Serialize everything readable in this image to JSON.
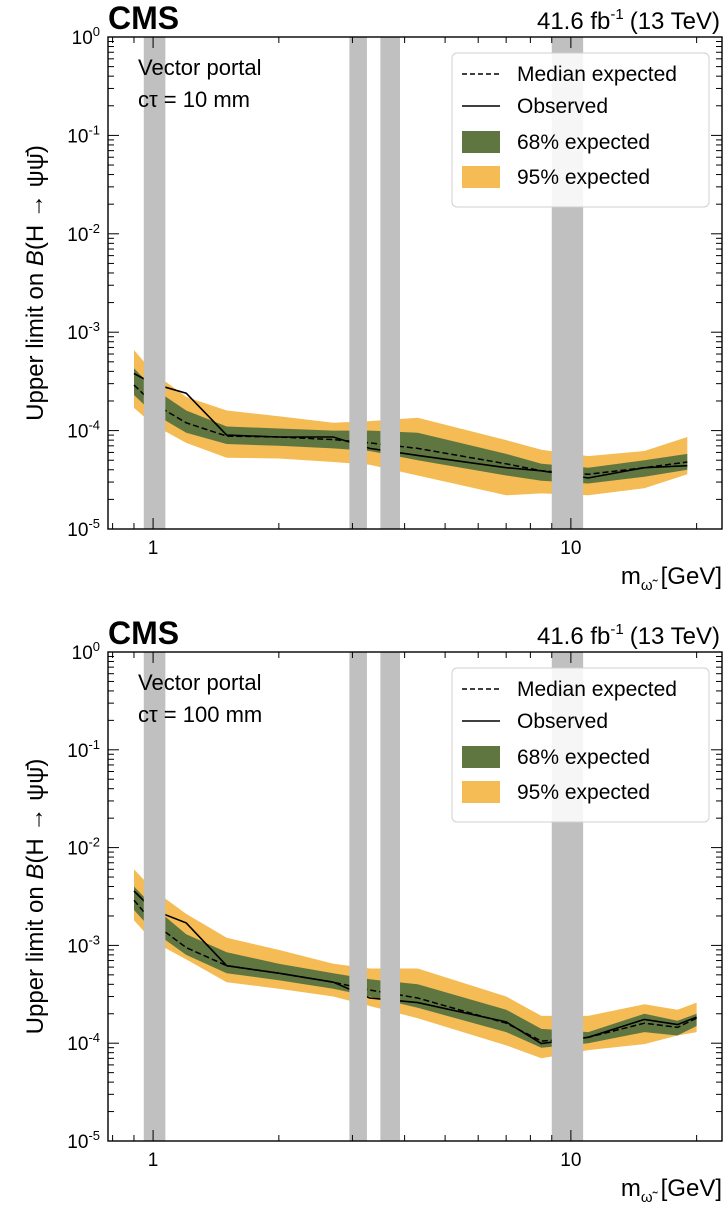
{
  "chart_data": [
    {
      "type": "line",
      "experiment": "CMS",
      "lumi_label": "41.6 fb",
      "lumi_exp": "-1",
      "energy_label": "(13 TeV)",
      "xlabel": "m",
      "xlabel_sub": "ω̃",
      "xlabel_unit": "[GeV]",
      "ylabel_main": "Upper limit on ",
      "ylabel_b": "B",
      "ylabel_paren": "(H → ψψ̄)",
      "annotation_line1": "Vector portal",
      "annotation_line2": "cτ = 10 mm",
      "xscale": "log",
      "yscale": "log",
      "xlim": [
        0.78,
        23
      ],
      "ylim": [
        1e-05,
        1
      ],
      "x_ticks": [
        {
          "value": 1,
          "label": "1"
        },
        {
          "value": 10,
          "label": "10"
        }
      ],
      "y_ticks": [
        {
          "value": 1e-05,
          "base": "10",
          "exp": "-5"
        },
        {
          "value": 0.0001,
          "base": "10",
          "exp": "-4"
        },
        {
          "value": 0.001,
          "base": "10",
          "exp": "-3"
        },
        {
          "value": 0.01,
          "base": "10",
          "exp": "-2"
        },
        {
          "value": 0.1,
          "base": "10",
          "exp": "-1"
        },
        {
          "value": 1,
          "base": "10",
          "exp": "0"
        }
      ],
      "excluded_bands": [
        [
          0.95,
          1.07
        ],
        [
          2.95,
          3.25
        ],
        [
          3.5,
          3.9
        ],
        [
          9.0,
          10.7
        ]
      ],
      "legend": {
        "position": "top-right",
        "median_label": "Median expected",
        "observed_label": "Observed",
        "band68_label": "68% expected",
        "band95_label": "95% expected"
      },
      "x": [
        0.9,
        1.0,
        1.2,
        1.5,
        2.0,
        2.7,
        3.3,
        4.3,
        7.0,
        8.5,
        11.0,
        15.0,
        19.0
      ],
      "median_expected": [
        0.00029,
        0.00019,
        0.00012,
        8.8e-05,
        8.6e-05,
        8.1e-05,
        7.5e-05,
        6.6e-05,
        4.6e-05,
        3.9e-05,
        3.6e-05,
        4.2e-05,
        4.8e-05
      ],
      "observed": [
        0.00038,
        0.0003,
        0.00024,
        9e-05,
        8.6e-05,
        8.6e-05,
        6.6e-05,
        5.6e-05,
        4.2e-05,
        3.9e-05,
        3.3e-05,
        4.2e-05,
        4.4e-05
      ],
      "band68_low": [
        0.00023,
        0.00015,
        9.5e-05,
        7.3e-05,
        7e-05,
        6.6e-05,
        6.2e-05,
        5e-05,
        3.5e-05,
        3.1e-05,
        2.9e-05,
        3.4e-05,
        4e-05
      ],
      "band68_high": [
        0.00043,
        0.00027,
        0.00016,
        0.00011,
        0.000105,
        0.0001,
        0.0001,
        9.5e-05,
        5.8e-05,
        4.6e-05,
        4.2e-05,
        5e-05,
        5.8e-05
      ],
      "band95_low": [
        0.00017,
        0.000115,
        7.5e-05,
        5.3e-05,
        5.2e-05,
        4.8e-05,
        4.5e-05,
        3.5e-05,
        2.2e-05,
        2.3e-05,
        2.2e-05,
        2.6e-05,
        3.6e-05
      ],
      "band95_high": [
        0.00066,
        0.00039,
        0.00022,
        0.00016,
        0.00014,
        0.00012,
        0.000125,
        0.000135,
        8e-05,
        6.4e-05,
        5.5e-05,
        6.2e-05,
        8.6e-05
      ]
    },
    {
      "type": "line",
      "experiment": "CMS",
      "lumi_label": "41.6 fb",
      "lumi_exp": "-1",
      "energy_label": "(13 TeV)",
      "xlabel": "m",
      "xlabel_sub": "ω̃",
      "xlabel_unit": "[GeV]",
      "ylabel_main": "Upper limit on ",
      "ylabel_b": "B",
      "ylabel_paren": "(H → ψψ̄)",
      "annotation_line1": "Vector portal",
      "annotation_line2": "cτ = 100 mm",
      "xscale": "log",
      "yscale": "log",
      "xlim": [
        0.78,
        23
      ],
      "ylim": [
        1e-05,
        1
      ],
      "x_ticks": [
        {
          "value": 1,
          "label": "1"
        },
        {
          "value": 10,
          "label": "10"
        }
      ],
      "y_ticks": [
        {
          "value": 1e-05,
          "base": "10",
          "exp": "-5"
        },
        {
          "value": 0.0001,
          "base": "10",
          "exp": "-4"
        },
        {
          "value": 0.001,
          "base": "10",
          "exp": "-3"
        },
        {
          "value": 0.01,
          "base": "10",
          "exp": "-2"
        },
        {
          "value": 0.1,
          "base": "10",
          "exp": "-1"
        },
        {
          "value": 1,
          "base": "10",
          "exp": "0"
        }
      ],
      "excluded_bands": [
        [
          0.95,
          1.07
        ],
        [
          2.95,
          3.25
        ],
        [
          3.5,
          3.9
        ],
        [
          9.0,
          10.7
        ]
      ],
      "legend": {
        "position": "top-right",
        "median_label": "Median expected",
        "observed_label": "Observed",
        "band68_label": "68% expected",
        "band95_label": "95% expected"
      },
      "x": [
        0.9,
        1.0,
        1.2,
        1.5,
        2.0,
        2.7,
        3.3,
        4.3,
        7.0,
        8.5,
        11.0,
        15.0,
        18.0,
        20.0
      ],
      "median_expected": [
        0.0029,
        0.0017,
        0.00095,
        0.00062,
        0.00052,
        0.00042,
        0.00035,
        0.00029,
        0.00016,
        0.000105,
        0.000115,
        0.00016,
        0.000145,
        0.00018
      ],
      "observed": [
        0.0036,
        0.0023,
        0.0017,
        0.00062,
        0.00052,
        0.00042,
        0.00029,
        0.00026,
        0.000165,
        9.9e-05,
        0.000115,
        0.000175,
        0.000155,
        0.000185
      ],
      "band68_low": [
        0.0023,
        0.0014,
        0.0008,
        0.00052,
        0.00044,
        0.00036,
        0.0003,
        0.00023,
        0.00013,
        9e-05,
        0.0001,
        0.00013,
        0.00012,
        0.00015
      ],
      "band68_high": [
        0.004,
        0.0025,
        0.0013,
        0.00085,
        0.00065,
        0.00052,
        0.00045,
        0.0004,
        0.00022,
        0.00014,
        0.00013,
        0.0002,
        0.00017,
        0.0002
      ],
      "band95_low": [
        0.0018,
        0.0011,
        0.00072,
        0.00042,
        0.00036,
        0.0003,
        0.00024,
        0.00018,
        9.5e-05,
        7e-05,
        8.5e-05,
        9.8e-05,
        0.00012,
        0.00013
      ],
      "band95_high": [
        0.006,
        0.0037,
        0.0021,
        0.0012,
        0.0009,
        0.00065,
        0.00058,
        0.00058,
        0.0003,
        0.00019,
        0.00019,
        0.00025,
        0.00022,
        0.00026
      ]
    }
  ],
  "colors": {
    "band68": "#607641",
    "band95": "#F5BB54",
    "excluded": "#C0C0C0",
    "line": "#000000"
  }
}
